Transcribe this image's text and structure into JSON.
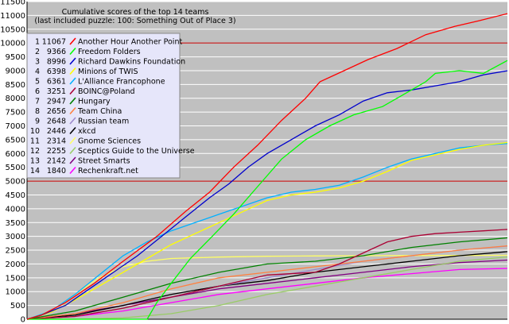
{
  "chart_data": {
    "type": "line",
    "title": "Cumulative scores of the top 14 teams",
    "subtitle": "(last included puzzle: 100: Something Out of Place 3)",
    "xlabel": "",
    "ylabel": "",
    "ylim": [
      0,
      11500
    ],
    "xlim": [
      0,
      100
    ],
    "y_ticks": [
      0,
      500,
      1000,
      1500,
      2000,
      2500,
      3000,
      3500,
      4000,
      4500,
      5000,
      5500,
      6000,
      6500,
      7000,
      7500,
      8000,
      8500,
      9000,
      9500,
      10000,
      10500,
      11000,
      11500
    ],
    "reference_lines": [
      5000,
      10000
    ],
    "reference_line_color": "#cc0000",
    "grid": true,
    "plot_background": "#c0c0c0",
    "legend_position": "top-left",
    "legend_background": "#e6e6fa",
    "series": [
      {
        "rank": "1",
        "score": "11067",
        "name": "Another Hour Another Point",
        "color": "#ff0000",
        "points": [
          [
            0,
            0
          ],
          [
            3,
            150
          ],
          [
            8,
            600
          ],
          [
            14,
            1300
          ],
          [
            20,
            2100
          ],
          [
            27,
            3000
          ],
          [
            33,
            3900
          ],
          [
            38,
            4600
          ],
          [
            43,
            5500
          ],
          [
            48,
            6300
          ],
          [
            53,
            7200
          ],
          [
            58,
            8000
          ],
          [
            61,
            8600
          ],
          [
            66,
            9000
          ],
          [
            71,
            9400
          ],
          [
            77,
            9800
          ],
          [
            83,
            10300
          ],
          [
            89,
            10600
          ],
          [
            94,
            10800
          ],
          [
            100,
            11067
          ]
        ]
      },
      {
        "rank": "2",
        "score": "9366",
        "name": "Freedom Folders",
        "color": "#00ff00",
        "points": [
          [
            0,
            0
          ],
          [
            20,
            0
          ],
          [
            25,
            0
          ],
          [
            27,
            600
          ],
          [
            30,
            1300
          ],
          [
            34,
            2200
          ],
          [
            38,
            2900
          ],
          [
            43,
            3800
          ],
          [
            48,
            4800
          ],
          [
            53,
            5800
          ],
          [
            58,
            6500
          ],
          [
            63,
            7000
          ],
          [
            68,
            7400
          ],
          [
            74,
            7700
          ],
          [
            79,
            8200
          ],
          [
            83,
            8600
          ],
          [
            85,
            8900
          ],
          [
            90,
            9000
          ],
          [
            95,
            8900
          ],
          [
            100,
            9366
          ]
        ]
      },
      {
        "rank": "3",
        "score": "8996",
        "name": "Richard Dawkins Foundation",
        "color": "#0000cc",
        "points": [
          [
            0,
            0
          ],
          [
            3,
            150
          ],
          [
            8,
            500
          ],
          [
            13,
            1100
          ],
          [
            18,
            1700
          ],
          [
            23,
            2300
          ],
          [
            28,
            3000
          ],
          [
            33,
            3700
          ],
          [
            38,
            4400
          ],
          [
            42,
            4900
          ],
          [
            46,
            5500
          ],
          [
            50,
            6000
          ],
          [
            55,
            6500
          ],
          [
            60,
            7000
          ],
          [
            65,
            7400
          ],
          [
            70,
            7900
          ],
          [
            75,
            8200
          ],
          [
            80,
            8300
          ],
          [
            85,
            8450
          ],
          [
            90,
            8600
          ],
          [
            95,
            8850
          ],
          [
            100,
            8996
          ]
        ]
      },
      {
        "rank": "4",
        "score": "6398",
        "name": "Minions of TWIS",
        "color": "#ffff00",
        "points": [
          [
            0,
            0
          ],
          [
            5,
            250
          ],
          [
            10,
            700
          ],
          [
            15,
            1200
          ],
          [
            20,
            1700
          ],
          [
            25,
            2200
          ],
          [
            30,
            2700
          ],
          [
            35,
            3100
          ],
          [
            40,
            3500
          ],
          [
            45,
            3900
          ],
          [
            50,
            4300
          ],
          [
            55,
            4500
          ],
          [
            60,
            4600
          ],
          [
            65,
            4750
          ],
          [
            70,
            5000
          ],
          [
            75,
            5350
          ],
          [
            80,
            5750
          ],
          [
            85,
            5950
          ],
          [
            90,
            6150
          ],
          [
            95,
            6300
          ],
          [
            100,
            6398
          ]
        ]
      },
      {
        "rank": "5",
        "score": "6361",
        "name": "L'Alliance Francophone",
        "color": "#00b0ff",
        "points": [
          [
            0,
            0
          ],
          [
            5,
            300
          ],
          [
            10,
            900
          ],
          [
            15,
            1600
          ],
          [
            20,
            2300
          ],
          [
            25,
            2800
          ],
          [
            30,
            3200
          ],
          [
            35,
            3500
          ],
          [
            40,
            3800
          ],
          [
            45,
            4100
          ],
          [
            50,
            4400
          ],
          [
            55,
            4600
          ],
          [
            60,
            4700
          ],
          [
            65,
            4850
          ],
          [
            70,
            5150
          ],
          [
            75,
            5500
          ],
          [
            80,
            5800
          ],
          [
            85,
            6000
          ],
          [
            90,
            6200
          ],
          [
            95,
            6300
          ],
          [
            100,
            6361
          ]
        ]
      },
      {
        "rank": "6",
        "score": "3251",
        "name": "BOINC@Poland",
        "color": "#aa0033",
        "points": [
          [
            0,
            0
          ],
          [
            10,
            100
          ],
          [
            20,
            400
          ],
          [
            30,
            800
          ],
          [
            40,
            1200
          ],
          [
            50,
            1600
          ],
          [
            60,
            1700
          ],
          [
            65,
            2000
          ],
          [
            70,
            2400
          ],
          [
            75,
            2800
          ],
          [
            80,
            3000
          ],
          [
            85,
            3100
          ],
          [
            90,
            3150
          ],
          [
            95,
            3200
          ],
          [
            100,
            3251
          ]
        ]
      },
      {
        "rank": "7",
        "score": "2947",
        "name": "Hungary",
        "color": "#008000",
        "points": [
          [
            0,
            0
          ],
          [
            10,
            300
          ],
          [
            20,
            800
          ],
          [
            30,
            1300
          ],
          [
            40,
            1700
          ],
          [
            50,
            2000
          ],
          [
            60,
            2100
          ],
          [
            70,
            2300
          ],
          [
            80,
            2600
          ],
          [
            90,
            2800
          ],
          [
            100,
            2947
          ]
        ]
      },
      {
        "rank": "8",
        "score": "2656",
        "name": "Team China",
        "color": "#ff8040",
        "points": [
          [
            0,
            0
          ],
          [
            10,
            200
          ],
          [
            20,
            600
          ],
          [
            30,
            1100
          ],
          [
            40,
            1500
          ],
          [
            50,
            1700
          ],
          [
            60,
            1900
          ],
          [
            70,
            2100
          ],
          [
            80,
            2300
          ],
          [
            90,
            2500
          ],
          [
            100,
            2656
          ]
        ]
      },
      {
        "rank": "9",
        "score": "2648",
        "name": "Russian team",
        "color": "#9b88cc",
        "points": [
          [
            0,
            0
          ],
          [
            10,
            100
          ],
          [
            20,
            400
          ],
          [
            30,
            800
          ],
          [
            40,
            1200
          ],
          [
            50,
            1500
          ],
          [
            60,
            1800
          ],
          [
            70,
            2100
          ],
          [
            80,
            2300
          ],
          [
            90,
            2500
          ],
          [
            100,
            2648
          ]
        ]
      },
      {
        "rank": "10",
        "score": "2446",
        "name": "xkcd",
        "color": "#000000",
        "points": [
          [
            0,
            0
          ],
          [
            10,
            150
          ],
          [
            20,
            500
          ],
          [
            30,
            900
          ],
          [
            40,
            1200
          ],
          [
            50,
            1400
          ],
          [
            60,
            1700
          ],
          [
            70,
            1900
          ],
          [
            80,
            2100
          ],
          [
            90,
            2300
          ],
          [
            100,
            2446
          ]
        ]
      },
      {
        "rank": "11",
        "score": "2314",
        "name": "Gnome Sciences",
        "color": "#ffff66",
        "points": [
          [
            0,
            0
          ],
          [
            5,
            300
          ],
          [
            10,
            900
          ],
          [
            15,
            1500
          ],
          [
            20,
            1900
          ],
          [
            25,
            2100
          ],
          [
            30,
            2200
          ],
          [
            40,
            2250
          ],
          [
            50,
            2280
          ],
          [
            60,
            2290
          ],
          [
            70,
            2300
          ],
          [
            80,
            2305
          ],
          [
            90,
            2310
          ],
          [
            100,
            2314
          ]
        ]
      },
      {
        "rank": "12",
        "score": "2255",
        "name": "Sceptics Guide to the Universe",
        "color": "#99cc66",
        "points": [
          [
            0,
            0
          ],
          [
            10,
            0
          ],
          [
            20,
            50
          ],
          [
            30,
            200
          ],
          [
            40,
            500
          ],
          [
            50,
            900
          ],
          [
            60,
            1200
          ],
          [
            70,
            1500
          ],
          [
            80,
            1800
          ],
          [
            90,
            2100
          ],
          [
            100,
            2255
          ]
        ]
      },
      {
        "rank": "13",
        "score": "2142",
        "name": "Street Smarts",
        "color": "#800080",
        "points": [
          [
            0,
            0
          ],
          [
            10,
            200
          ],
          [
            20,
            500
          ],
          [
            30,
            800
          ],
          [
            40,
            1100
          ],
          [
            50,
            1300
          ],
          [
            60,
            1500
          ],
          [
            70,
            1700
          ],
          [
            80,
            1900
          ],
          [
            90,
            2050
          ],
          [
            100,
            2142
          ]
        ]
      },
      {
        "rank": "14",
        "score": "1840",
        "name": "Rechenkraft.net",
        "color": "#ff00ff",
        "points": [
          [
            0,
            0
          ],
          [
            10,
            100
          ],
          [
            20,
            300
          ],
          [
            30,
            600
          ],
          [
            40,
            900
          ],
          [
            50,
            1100
          ],
          [
            60,
            1300
          ],
          [
            70,
            1500
          ],
          [
            80,
            1650
          ],
          [
            90,
            1800
          ],
          [
            100,
            1840
          ]
        ]
      }
    ]
  }
}
